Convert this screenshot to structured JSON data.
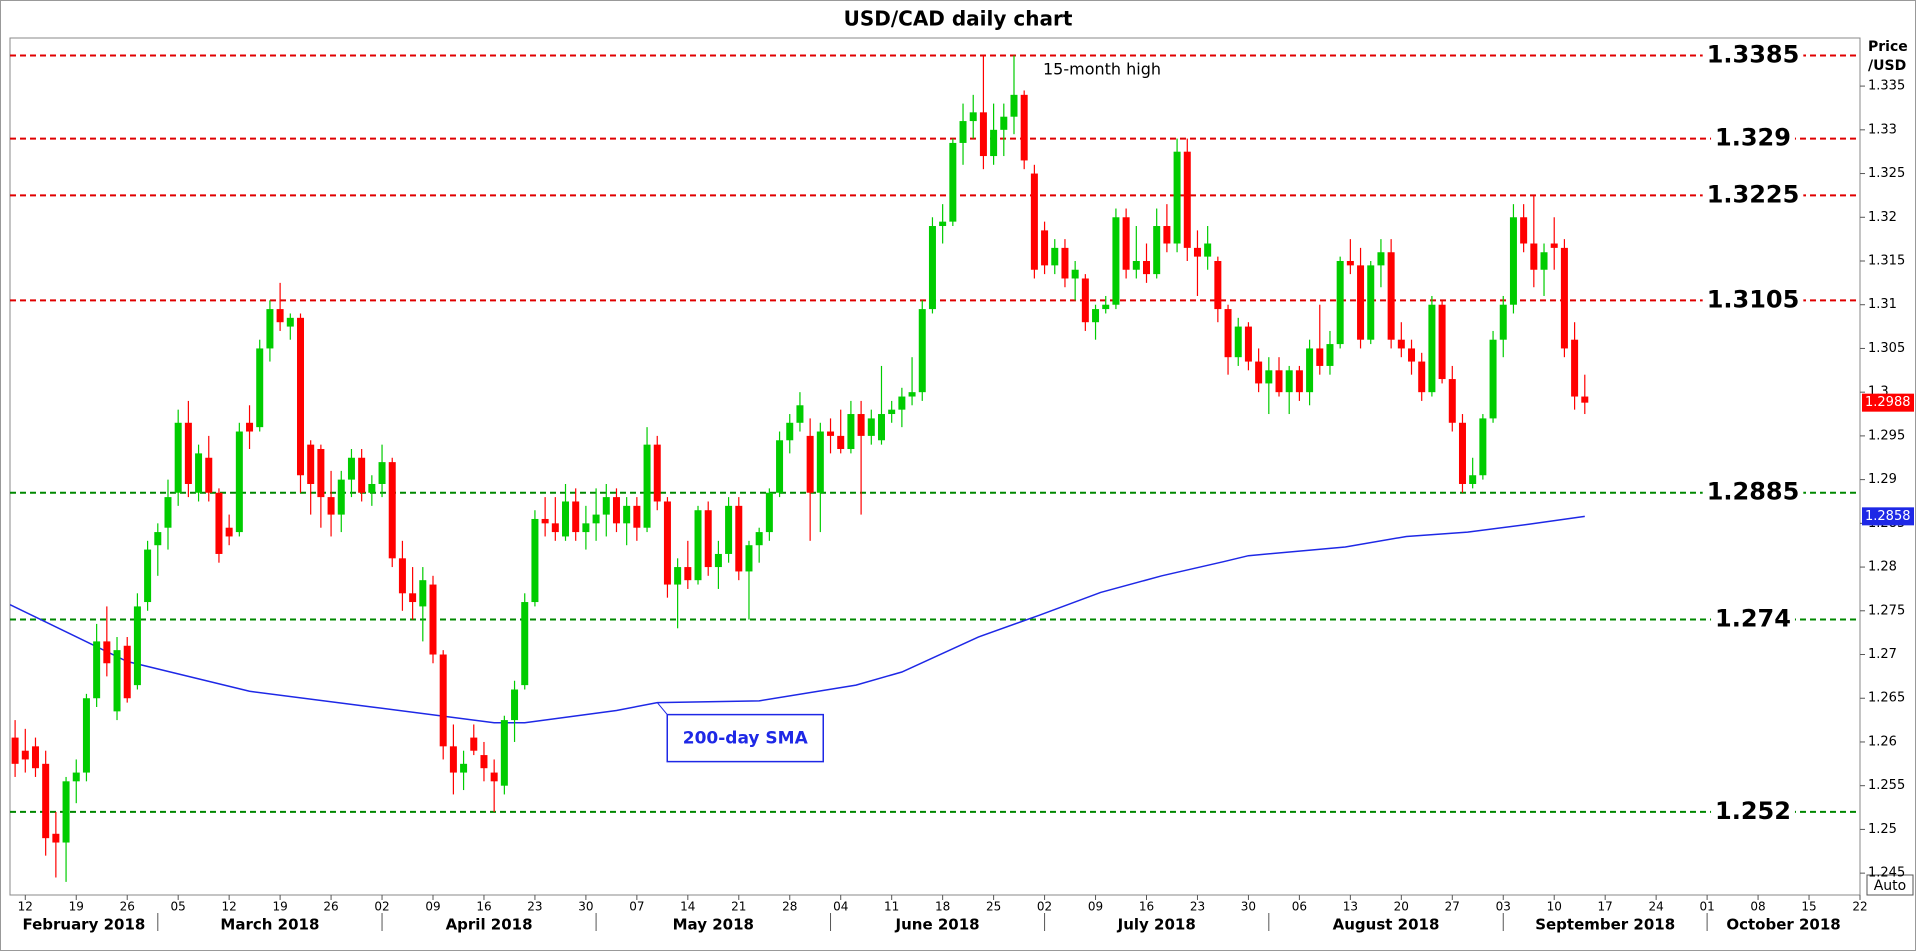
{
  "chart_data": {
    "type": "candlestick",
    "title": "USD/CAD daily chart",
    "y_axis_label": [
      "Price",
      "/USD"
    ],
    "xlim": [
      -1.5,
      180
    ],
    "ylim": [
      1.2425,
      1.3405
    ],
    "yticks": [
      1.245,
      1.25,
      1.255,
      1.26,
      1.265,
      1.27,
      1.275,
      1.28,
      1.285,
      1.29,
      1.295,
      1.3,
      1.305,
      1.31,
      1.315,
      1.32,
      1.325,
      1.33,
      1.335
    ],
    "xticks": [
      {
        "value": 0,
        "label": "12"
      },
      {
        "value": 5,
        "label": "19"
      },
      {
        "value": 10,
        "label": "26"
      },
      {
        "value": 15,
        "label": "05"
      },
      {
        "value": 20,
        "label": "12"
      },
      {
        "value": 25,
        "label": "19"
      },
      {
        "value": 30,
        "label": "26"
      },
      {
        "value": 35,
        "label": "02"
      },
      {
        "value": 40,
        "label": "09"
      },
      {
        "value": 45,
        "label": "16"
      },
      {
        "value": 50,
        "label": "23"
      },
      {
        "value": 55,
        "label": "30"
      },
      {
        "value": 60,
        "label": "07"
      },
      {
        "value": 65,
        "label": "14"
      },
      {
        "value": 70,
        "label": "21"
      },
      {
        "value": 75,
        "label": "28"
      },
      {
        "value": 80,
        "label": "04"
      },
      {
        "value": 85,
        "label": "11"
      },
      {
        "value": 90,
        "label": "18"
      },
      {
        "value": 95,
        "label": "25"
      },
      {
        "value": 100,
        "label": "02"
      },
      {
        "value": 105,
        "label": "09"
      },
      {
        "value": 110,
        "label": "16"
      },
      {
        "value": 115,
        "label": "23"
      },
      {
        "value": 120,
        "label": "30"
      },
      {
        "value": 125,
        "label": "06"
      },
      {
        "value": 130,
        "label": "13"
      },
      {
        "value": 135,
        "label": "20"
      },
      {
        "value": 140,
        "label": "27"
      },
      {
        "value": 145,
        "label": "03"
      },
      {
        "value": 150,
        "label": "10"
      },
      {
        "value": 155,
        "label": "17"
      },
      {
        "value": 160,
        "label": "24"
      },
      {
        "value": 165,
        "label": "01"
      },
      {
        "value": 170,
        "label": "08"
      },
      {
        "value": 175,
        "label": "15"
      },
      {
        "value": 180,
        "label": "22"
      }
    ],
    "months": [
      {
        "value": -7,
        "label": "February 2018"
      },
      {
        "value": 13,
        "label": "March 2018"
      },
      {
        "value": 35,
        "label": "April 2018"
      },
      {
        "value": 56,
        "label": "May 2018"
      },
      {
        "value": 79,
        "label": "June 2018"
      },
      {
        "value": 100,
        "label": "July 2018"
      },
      {
        "value": 122,
        "label": "August 2018"
      },
      {
        "value": 145,
        "label": "September 2018"
      },
      {
        "value": 165,
        "label": "October 2018"
      }
    ],
    "up_color": "#00cc00",
    "down_color": "#ff0000",
    "x": [
      -1,
      0,
      1,
      2,
      3,
      4,
      5,
      6,
      7,
      8,
      9,
      10,
      11,
      12,
      13,
      14,
      15,
      16,
      17,
      18,
      19,
      20,
      21,
      22,
      23,
      24,
      25,
      26,
      27,
      28,
      29,
      30,
      31,
      32,
      33,
      34,
      35,
      36,
      37,
      38,
      39,
      40,
      41,
      42,
      43,
      44,
      45,
      46,
      47,
      48,
      49,
      50,
      51,
      52,
      53,
      54,
      55,
      56,
      57,
      58,
      59,
      60,
      61,
      62,
      63,
      64,
      65,
      66,
      67,
      68,
      69,
      70,
      71,
      72,
      73,
      74,
      75,
      76,
      77,
      78,
      79,
      80,
      81,
      82,
      83,
      84,
      85,
      86,
      87,
      88,
      89,
      90,
      91,
      92,
      93,
      94,
      95,
      96,
      97,
      98,
      99,
      100,
      101,
      102,
      103,
      104,
      105,
      106,
      107,
      108,
      109,
      110,
      111,
      112,
      113,
      114,
      115,
      116,
      117,
      118,
      119,
      120,
      121,
      122,
      123,
      124,
      125,
      126,
      127,
      128,
      129,
      130,
      131,
      132,
      133,
      134,
      135,
      136,
      137,
      138,
      139,
      140,
      141,
      142,
      143,
      144,
      145,
      146,
      147,
      148,
      149,
      150,
      151,
      152,
      153
    ],
    "ohlc": [
      [
        1.2605,
        1.2625,
        1.256,
        1.2575
      ],
      [
        1.259,
        1.2615,
        1.2565,
        1.258
      ],
      [
        1.2595,
        1.2605,
        1.256,
        1.257
      ],
      [
        1.2575,
        1.259,
        1.247,
        1.249
      ],
      [
        1.2495,
        1.252,
        1.2445,
        1.2485
      ],
      [
        1.2485,
        1.256,
        1.244,
        1.2555
      ],
      [
        1.2555,
        1.258,
        1.253,
        1.2565
      ],
      [
        1.2565,
        1.2655,
        1.2555,
        1.265
      ],
      [
        1.265,
        1.2735,
        1.264,
        1.2715
      ],
      [
        1.2715,
        1.2755,
        1.2675,
        1.269
      ],
      [
        1.2635,
        1.272,
        1.2625,
        1.2705
      ],
      [
        1.271,
        1.272,
        1.2645,
        1.265
      ],
      [
        1.2665,
        1.277,
        1.266,
        1.2755
      ],
      [
        1.276,
        1.283,
        1.275,
        1.282
      ],
      [
        1.2825,
        1.285,
        1.279,
        1.284
      ],
      [
        1.2845,
        1.29,
        1.282,
        1.288
      ],
      [
        1.2885,
        1.298,
        1.287,
        1.2965
      ],
      [
        1.2965,
        1.299,
        1.288,
        1.2895
      ],
      [
        1.2885,
        1.294,
        1.2875,
        1.293
      ],
      [
        1.2925,
        1.295,
        1.2875,
        1.2885
      ],
      [
        1.2885,
        1.289,
        1.2805,
        1.2815
      ],
      [
        1.2845,
        1.286,
        1.2825,
        1.2835
      ],
      [
        1.284,
        1.2965,
        1.2835,
        1.2955
      ],
      [
        1.2965,
        1.2985,
        1.2935,
        1.2955
      ],
      [
        1.296,
        1.306,
        1.2955,
        1.305
      ],
      [
        1.305,
        1.3105,
        1.3035,
        1.3095
      ],
      [
        1.3095,
        1.3125,
        1.307,
        1.308
      ],
      [
        1.3075,
        1.309,
        1.306,
        1.3085
      ],
      [
        1.3085,
        1.309,
        1.2885,
        1.2905
      ],
      [
        1.294,
        1.2945,
        1.286,
        1.2895
      ],
      [
        1.2935,
        1.294,
        1.2845,
        1.288
      ],
      [
        1.288,
        1.291,
        1.2835,
        1.286
      ],
      [
        1.286,
        1.291,
        1.284,
        1.29
      ],
      [
        1.29,
        1.2935,
        1.288,
        1.2925
      ],
      [
        1.2925,
        1.2935,
        1.2875,
        1.2885
      ],
      [
        1.2885,
        1.2905,
        1.287,
        1.2895
      ],
      [
        1.2895,
        1.294,
        1.288,
        1.292
      ],
      [
        1.292,
        1.2925,
        1.28,
        1.281
      ],
      [
        1.281,
        1.283,
        1.275,
        1.277
      ],
      [
        1.277,
        1.28,
        1.274,
        1.276
      ],
      [
        1.2755,
        1.28,
        1.2715,
        1.2785
      ],
      [
        1.278,
        1.279,
        1.269,
        1.27
      ],
      [
        1.27,
        1.2705,
        1.258,
        1.2595
      ],
      [
        1.2595,
        1.262,
        1.254,
        1.2565
      ],
      [
        1.2565,
        1.259,
        1.2545,
        1.2575
      ],
      [
        1.2605,
        1.262,
        1.2585,
        1.259
      ],
      [
        1.2585,
        1.26,
        1.2555,
        1.257
      ],
      [
        1.2565,
        1.258,
        1.252,
        1.2555
      ],
      [
        1.255,
        1.263,
        1.254,
        1.2625
      ],
      [
        1.2625,
        1.267,
        1.26,
        1.266
      ],
      [
        1.2665,
        1.277,
        1.266,
        1.276
      ],
      [
        1.276,
        1.2865,
        1.2755,
        1.2855
      ],
      [
        1.2855,
        1.288,
        1.2835,
        1.285
      ],
      [
        1.285,
        1.288,
        1.283,
        1.284
      ],
      [
        1.2835,
        1.2895,
        1.283,
        1.2875
      ],
      [
        1.2875,
        1.289,
        1.283,
        1.284
      ],
      [
        1.284,
        1.287,
        1.282,
        1.285
      ],
      [
        1.285,
        1.289,
        1.283,
        1.286
      ],
      [
        1.286,
        1.2895,
        1.2835,
        1.288
      ],
      [
        1.288,
        1.289,
        1.284,
        1.285
      ],
      [
        1.285,
        1.288,
        1.2825,
        1.287
      ],
      [
        1.287,
        1.288,
        1.283,
        1.2845
      ],
      [
        1.2845,
        1.296,
        1.284,
        1.294
      ],
      [
        1.294,
        1.295,
        1.2865,
        1.2875
      ],
      [
        1.2875,
        1.288,
        1.2765,
        1.278
      ],
      [
        1.278,
        1.281,
        1.273,
        1.28
      ],
      [
        1.28,
        1.283,
        1.2775,
        1.2785
      ],
      [
        1.2785,
        1.287,
        1.278,
        1.2865
      ],
      [
        1.2865,
        1.2875,
        1.279,
        1.28
      ],
      [
        1.28,
        1.283,
        1.2775,
        1.2815
      ],
      [
        1.2815,
        1.288,
        1.2805,
        1.287
      ],
      [
        1.287,
        1.288,
        1.2785,
        1.2795
      ],
      [
        1.2795,
        1.283,
        1.274,
        1.2825
      ],
      [
        1.2825,
        1.2845,
        1.2805,
        1.284
      ],
      [
        1.284,
        1.289,
        1.283,
        1.2885
      ],
      [
        1.2885,
        1.2955,
        1.288,
        1.2945
      ],
      [
        1.2945,
        1.2975,
        1.293,
        1.2965
      ],
      [
        1.2965,
        1.3,
        1.2955,
        1.2985
      ],
      [
        1.295,
        1.297,
        1.283,
        1.2885
      ],
      [
        1.2885,
        1.2965,
        1.284,
        1.2955
      ],
      [
        1.2955,
        1.297,
        1.293,
        1.295
      ],
      [
        1.295,
        1.298,
        1.293,
        1.2935
      ],
      [
        1.2935,
        1.299,
        1.293,
        1.2975
      ],
      [
        1.2975,
        1.299,
        1.286,
        1.295
      ],
      [
        1.295,
        1.298,
        1.294,
        1.297
      ],
      [
        1.2945,
        1.303,
        1.294,
        1.2975
      ],
      [
        1.2975,
        1.299,
        1.2965,
        1.298
      ],
      [
        1.298,
        1.3005,
        1.296,
        1.2995
      ],
      [
        1.2995,
        1.304,
        1.2985,
        1.3
      ],
      [
        1.3,
        1.3105,
        1.299,
        1.3095
      ],
      [
        1.3095,
        1.32,
        1.309,
        1.319
      ],
      [
        1.319,
        1.3215,
        1.317,
        1.3195
      ],
      [
        1.3195,
        1.329,
        1.319,
        1.3285
      ],
      [
        1.3285,
        1.333,
        1.326,
        1.331
      ],
      [
        1.331,
        1.334,
        1.329,
        1.332
      ],
      [
        1.332,
        1.3385,
        1.3255,
        1.327
      ],
      [
        1.327,
        1.333,
        1.326,
        1.33
      ],
      [
        1.33,
        1.333,
        1.327,
        1.3315
      ],
      [
        1.3315,
        1.3385,
        1.3295,
        1.334
      ],
      [
        1.334,
        1.3345,
        1.3255,
        1.3265
      ],
      [
        1.325,
        1.326,
        1.313,
        1.314
      ],
      [
        1.3185,
        1.3195,
        1.3135,
        1.3145
      ],
      [
        1.3145,
        1.3175,
        1.3135,
        1.3165
      ],
      [
        1.3165,
        1.3175,
        1.312,
        1.313
      ],
      [
        1.313,
        1.315,
        1.3105,
        1.314
      ],
      [
        1.313,
        1.3135,
        1.307,
        1.308
      ],
      [
        1.308,
        1.31,
        1.306,
        1.3095
      ],
      [
        1.3095,
        1.311,
        1.309,
        1.31
      ],
      [
        1.31,
        1.321,
        1.3095,
        1.32
      ],
      [
        1.32,
        1.321,
        1.313,
        1.314
      ],
      [
        1.314,
        1.319,
        1.313,
        1.315
      ],
      [
        1.315,
        1.317,
        1.3125,
        1.3135
      ],
      [
        1.3135,
        1.321,
        1.313,
        1.319
      ],
      [
        1.319,
        1.3215,
        1.316,
        1.317
      ],
      [
        1.317,
        1.329,
        1.316,
        1.3275
      ],
      [
        1.3275,
        1.329,
        1.315,
        1.3165
      ],
      [
        1.3165,
        1.3185,
        1.311,
        1.3155
      ],
      [
        1.3155,
        1.319,
        1.314,
        1.317
      ],
      [
        1.315,
        1.3155,
        1.308,
        1.3095
      ],
      [
        1.3095,
        1.31,
        1.302,
        1.304
      ],
      [
        1.304,
        1.3085,
        1.303,
        1.3075
      ],
      [
        1.3075,
        1.308,
        1.3025,
        1.3035
      ],
      [
        1.3035,
        1.305,
        1.3,
        1.301
      ],
      [
        1.301,
        1.304,
        1.2975,
        1.3025
      ],
      [
        1.3025,
        1.304,
        1.2995,
        1.3
      ],
      [
        1.3,
        1.303,
        1.2975,
        1.3025
      ],
      [
        1.3025,
        1.303,
        1.299,
        1.3
      ],
      [
        1.3,
        1.306,
        1.2985,
        1.305
      ],
      [
        1.305,
        1.31,
        1.302,
        1.303
      ],
      [
        1.303,
        1.307,
        1.302,
        1.3055
      ],
      [
        1.3055,
        1.3155,
        1.305,
        1.315
      ],
      [
        1.315,
        1.3175,
        1.3135,
        1.3145
      ],
      [
        1.3145,
        1.3165,
        1.305,
        1.306
      ],
      [
        1.306,
        1.315,
        1.3055,
        1.3145
      ],
      [
        1.3145,
        1.3175,
        1.312,
        1.316
      ],
      [
        1.316,
        1.3175,
        1.305,
        1.306
      ],
      [
        1.306,
        1.308,
        1.304,
        1.305
      ],
      [
        1.305,
        1.306,
        1.302,
        1.3035
      ],
      [
        1.3035,
        1.3045,
        1.299,
        1.3
      ],
      [
        1.3,
        1.311,
        1.2995,
        1.31
      ],
      [
        1.31,
        1.3105,
        1.301,
        1.3015
      ],
      [
        1.3015,
        1.303,
        1.2955,
        1.2965
      ],
      [
        1.2965,
        1.2975,
        1.2885,
        1.2895
      ],
      [
        1.2895,
        1.2925,
        1.289,
        1.2905
      ],
      [
        1.2905,
        1.2975,
        1.29,
        1.297
      ],
      [
        1.297,
        1.307,
        1.2965,
        1.306
      ],
      [
        1.306,
        1.311,
        1.304,
        1.31
      ],
      [
        1.31,
        1.3215,
        1.309,
        1.32
      ],
      [
        1.32,
        1.3215,
        1.316,
        1.317
      ],
      [
        1.317,
        1.3225,
        1.312,
        1.314
      ],
      [
        1.314,
        1.317,
        1.311,
        1.316
      ],
      [
        1.317,
        1.32,
        1.314,
        1.3165
      ],
      [
        1.3165,
        1.3175,
        1.304,
        1.305
      ],
      [
        1.306,
        1.308,
        1.298,
        1.2995
      ],
      [
        1.2995,
        1.302,
        1.2975,
        1.2988
      ]
    ],
    "sma": {
      "name": "200-day SMA",
      "color": "#1e28e6",
      "x": [
        -1.5,
        10,
        22,
        34,
        46,
        49,
        58,
        62,
        72,
        81.5,
        86,
        93.5,
        99.5,
        105.5,
        111.5,
        117.5,
        120,
        129.5,
        135.5,
        141.5,
        147.5,
        153
      ],
      "values": [
        1.2757,
        1.2692,
        1.2658,
        1.264,
        1.2622,
        1.2622,
        1.2636,
        1.2645,
        1.2647,
        1.2665,
        1.268,
        1.272,
        1.2745,
        1.2771,
        1.279,
        1.2806,
        1.2813,
        1.2823,
        1.2835,
        1.284,
        1.2849,
        1.2858
      ]
    },
    "levels": [
      {
        "value": 1.3385,
        "color": "#e00000"
      },
      {
        "value": 1.329,
        "color": "#e00000"
      },
      {
        "value": 1.3225,
        "color": "#e00000"
      },
      {
        "value": 1.3105,
        "color": "#e00000"
      },
      {
        "value": 1.2885,
        "color": "#008800"
      },
      {
        "value": 1.274,
        "color": "#008800"
      },
      {
        "value": 1.252,
        "color": "#008800"
      }
    ],
    "annotation": "15-month high",
    "button": "Auto"
  }
}
